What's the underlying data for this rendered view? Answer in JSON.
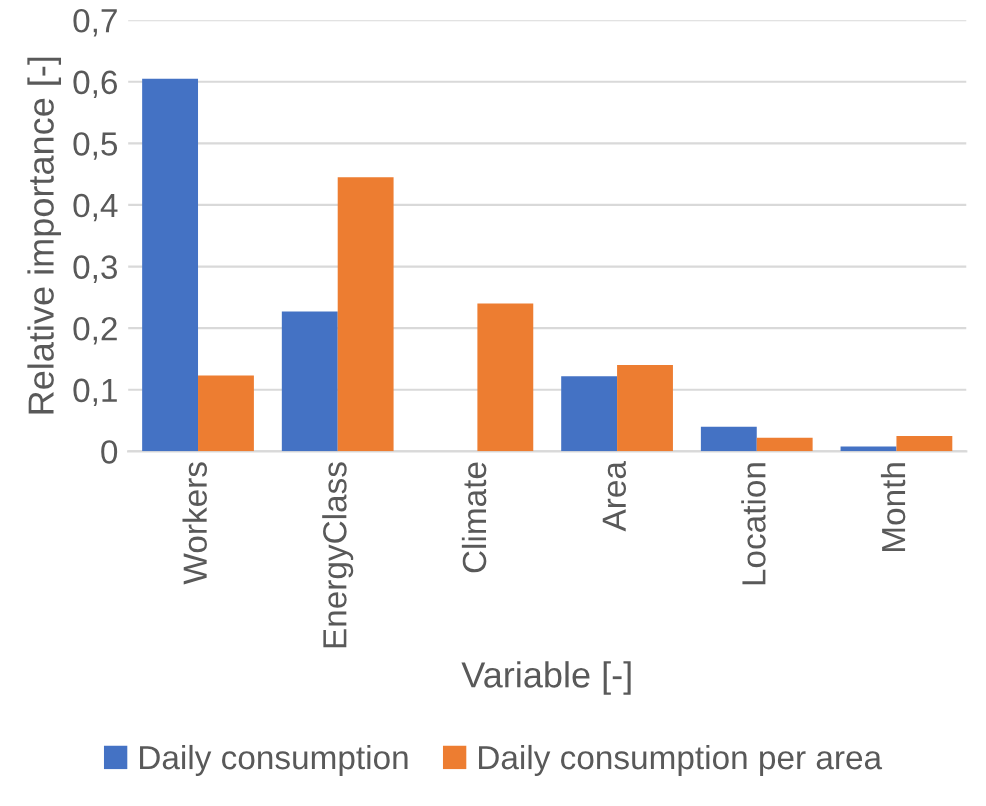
{
  "chart_data": {
    "type": "bar",
    "xlabel": "Variable [-]",
    "ylabel": "Relative importance [-]",
    "categories": [
      "Workers",
      "EnergyClass",
      "Climate",
      "Area",
      "Location",
      "Month"
    ],
    "series": [
      {
        "name": "Daily consumption",
        "color": "#4472c4",
        "values": [
          0.605,
          0.227,
          0,
          0.122,
          0.04,
          0.008
        ]
      },
      {
        "name": "Daily consumption per area",
        "color": "#ed7d31",
        "values": [
          0.123,
          0.445,
          0.24,
          0.14,
          0.022,
          0.025
        ]
      }
    ],
    "ylim": [
      0,
      0.7
    ],
    "yticks": [
      0,
      {
        "value": 0.1,
        "label": "0,1"
      },
      {
        "value": 0.2,
        "label": "0,2"
      },
      {
        "value": 0.3,
        "label": "0,3"
      },
      {
        "value": 0.4,
        "label": "0,4"
      },
      {
        "value": 0.5,
        "label": "0,5"
      },
      {
        "value": 0.6,
        "label": "0,6"
      },
      {
        "value": 0.7,
        "label": "0,7"
      }
    ],
    "grid": "y",
    "legend": "bottom"
  }
}
